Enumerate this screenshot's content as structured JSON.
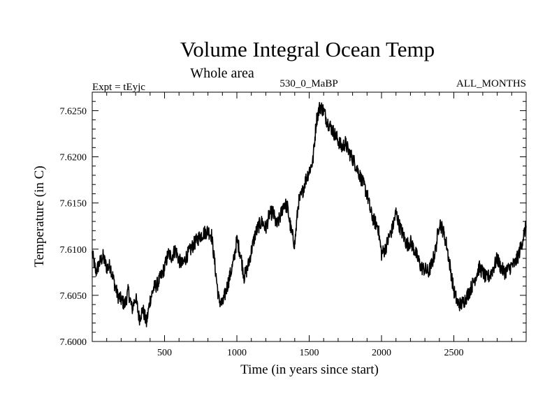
{
  "chart_data": {
    "type": "line",
    "title": "Volume Integral Ocean Temp",
    "subtitle": "Whole area",
    "header_left": "Expt = tEyjc",
    "header_center": "530_0_MaBP",
    "header_right": "ALL_MONTHS",
    "xlabel": "Time (in years since start)",
    "ylabel": "Temperature (in C)",
    "xlim": [
      0,
      3000
    ],
    "ylim": [
      7.6,
      7.627
    ],
    "x_ticks": [
      500,
      1000,
      1500,
      2000,
      2500
    ],
    "x_tick_labels": [
      "500",
      "1000",
      "1500",
      "2000",
      "2500"
    ],
    "y_ticks": [
      7.6,
      7.605,
      7.61,
      7.615,
      7.62,
      7.625
    ],
    "y_tick_labels": [
      "7.6000",
      "7.6050",
      "7.6100",
      "7.6150",
      "7.6200",
      "7.6250"
    ],
    "grid": false,
    "series": [
      {
        "name": "Volume Integral Ocean Temp",
        "x": [
          0,
          25,
          50,
          75,
          100,
          125,
          150,
          175,
          200,
          225,
          250,
          275,
          300,
          325,
          350,
          375,
          400,
          425,
          450,
          475,
          500,
          525,
          550,
          575,
          600,
          625,
          650,
          675,
          700,
          725,
          750,
          775,
          800,
          825,
          850,
          875,
          900,
          925,
          950,
          975,
          1000,
          1025,
          1050,
          1075,
          1100,
          1125,
          1150,
          1175,
          1200,
          1225,
          1250,
          1275,
          1300,
          1325,
          1350,
          1375,
          1400,
          1425,
          1450,
          1475,
          1500,
          1525,
          1550,
          1575,
          1600,
          1625,
          1650,
          1675,
          1700,
          1725,
          1750,
          1775,
          1800,
          1825,
          1850,
          1875,
          1900,
          1925,
          1950,
          1975,
          2000,
          2025,
          2050,
          2075,
          2100,
          2125,
          2150,
          2175,
          2200,
          2225,
          2250,
          2275,
          2300,
          2325,
          2350,
          2375,
          2400,
          2425,
          2450,
          2475,
          2500,
          2525,
          2550,
          2575,
          2600,
          2625,
          2650,
          2675,
          2700,
          2725,
          2750,
          2775,
          2800,
          2825,
          2850,
          2875,
          2900,
          2925,
          2950,
          2975,
          3000
        ],
        "values": [
          7.6095,
          7.6075,
          7.6085,
          7.6092,
          7.608,
          7.6082,
          7.6065,
          7.605,
          7.6045,
          7.604,
          7.6055,
          7.6035,
          7.6048,
          7.6025,
          7.6035,
          7.602,
          7.6045,
          7.6058,
          7.6062,
          7.607,
          7.608,
          7.6095,
          7.6092,
          7.61,
          7.6088,
          7.6083,
          7.6092,
          7.6098,
          7.6105,
          7.611,
          7.6115,
          7.6118,
          7.612,
          7.6115,
          7.608,
          7.6045,
          7.604,
          7.6055,
          7.607,
          7.6085,
          7.611,
          7.6095,
          7.607,
          7.608,
          7.6098,
          7.6115,
          7.6125,
          7.613,
          7.6122,
          7.6138,
          7.614,
          7.6125,
          7.6135,
          7.615,
          7.6145,
          7.612,
          7.6105,
          7.615,
          7.616,
          7.6175,
          7.6185,
          7.6195,
          7.624,
          7.6255,
          7.625,
          7.6238,
          7.6232,
          7.6225,
          7.6218,
          7.621,
          7.6215,
          7.6205,
          7.6198,
          7.619,
          7.618,
          7.617,
          7.616,
          7.614,
          7.613,
          7.6125,
          7.6095,
          7.61,
          7.6112,
          7.6122,
          7.614,
          7.6125,
          7.6115,
          7.6105,
          7.6108,
          7.61,
          7.609,
          7.608,
          7.6078,
          7.6075,
          7.6085,
          7.61,
          7.613,
          7.612,
          7.6105,
          7.608,
          7.6055,
          7.6042,
          7.604,
          7.6045,
          7.6052,
          7.606,
          7.607,
          7.608,
          7.6075,
          7.6068,
          7.6072,
          7.608,
          7.609,
          7.608,
          7.6075,
          7.6078,
          7.6082,
          7.6085,
          7.6095,
          7.611,
          7.6125
        ]
      }
    ]
  }
}
